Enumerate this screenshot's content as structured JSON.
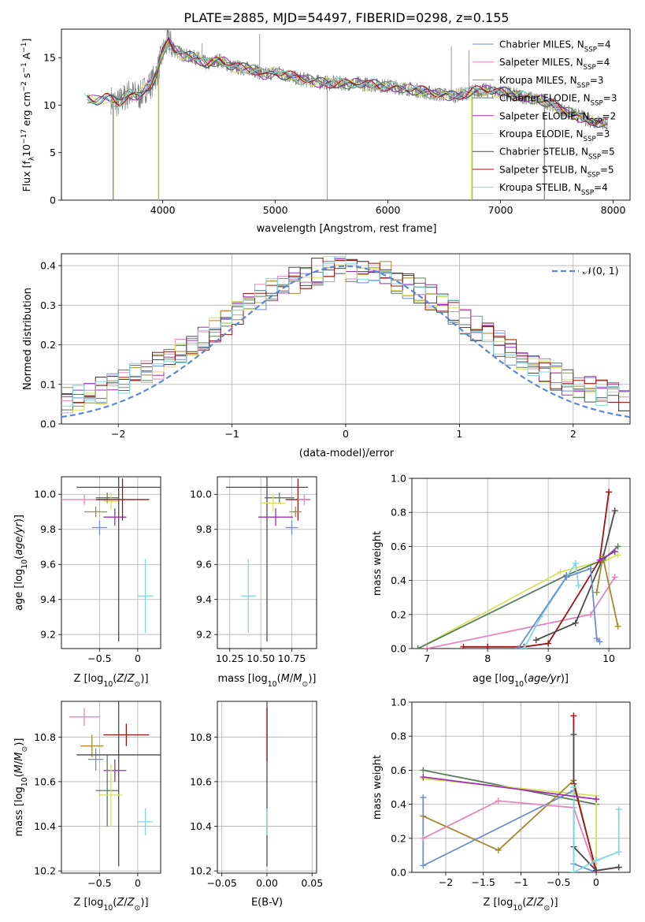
{
  "figure_title": "PLATE=2885, MJD=54497, FIBERID=0298, z=0.155",
  "colors": {
    "cha_miles": "#6a8fd4",
    "sal_miles": "#e587ba",
    "kro_miles": "#a08a2c",
    "cha_elodie": "#5b7a5a",
    "sal_elodie": "#9e2fb5",
    "kro_elodie": "#d5e35a",
    "cha_stelib": "#4a4a4a",
    "sal_stelib": "#9c1515",
    "kro_stelib": "#7fd9dd",
    "data": "#808080",
    "normal": "#5b87d6",
    "orange": "#e07b1f"
  },
  "chart_data": [
    {
      "id": "spectrum",
      "type": "line",
      "xlabel": "wavelength [Angstrom, rest frame]",
      "ylabel": "Flux [f_λ10^-17 erg cm^-2 s^-1 A^-1]",
      "xlim": [
        3100,
        8150
      ],
      "ylim": [
        0,
        18
      ],
      "xticks": [
        4000,
        5000,
        6000,
        7000,
        8000
      ],
      "yticks": [
        0,
        5,
        10,
        15
      ],
      "legend_position": "top-right",
      "series": [
        {
          "name": "Chabrier MILES, N_SSP=4",
          "key": "cha_miles"
        },
        {
          "name": "Salpeter MILES, N_SSP=4",
          "key": "sal_miles"
        },
        {
          "name": "Kroupa MILES, N_SSP=3",
          "key": "kro_miles"
        },
        {
          "name": "Chabrier ELODIE, N_SSP=3",
          "key": "cha_elodie"
        },
        {
          "name": "Salpeter ELODIE, N_SSP=2",
          "key": "sal_elodie"
        },
        {
          "name": "Kroupa ELODIE, N_SSP=3",
          "key": "kro_elodie"
        },
        {
          "name": "Chabrier STELIB, N_SSP=5",
          "key": "cha_stelib"
        },
        {
          "name": "Salpeter STELIB, N_SSP=5",
          "key": "sal_stelib"
        },
        {
          "name": "Kroupa STELIB, N_SSP=4",
          "key": "kro_stelib"
        }
      ],
      "model_curve": [
        [
          3300,
          11.0
        ],
        [
          3400,
          10.4
        ],
        [
          3500,
          10.8
        ],
        [
          3600,
          10.2
        ],
        [
          3700,
          11.2
        ],
        [
          3800,
          11.0
        ],
        [
          3850,
          11.8
        ],
        [
          3900,
          12.3
        ],
        [
          3950,
          13.5
        ],
        [
          4000,
          15.5
        ],
        [
          4050,
          16.8
        ],
        [
          4100,
          15.8
        ],
        [
          4200,
          15.2
        ],
        [
          4300,
          15.0
        ],
        [
          4400,
          14.3
        ],
        [
          4500,
          14.8
        ],
        [
          4600,
          14.1
        ],
        [
          4700,
          13.9
        ],
        [
          4800,
          13.8
        ],
        [
          4900,
          13.2
        ],
        [
          5000,
          13.5
        ],
        [
          5200,
          12.8
        ],
        [
          5400,
          12.4
        ],
        [
          5600,
          12.3
        ],
        [
          5800,
          12.2
        ],
        [
          6000,
          12.0
        ],
        [
          6200,
          11.7
        ],
        [
          6400,
          11.2
        ],
        [
          6600,
          11.0
        ],
        [
          6800,
          11.6
        ],
        [
          7000,
          11.4
        ],
        [
          7200,
          10.9
        ],
        [
          7400,
          10.4
        ],
        [
          7600,
          9.2
        ],
        [
          7800,
          8.4
        ],
        [
          7950,
          8.0
        ]
      ],
      "spectrum_range": [
        3540,
        7950
      ],
      "spike_lines": [
        [
          3560,
          0
        ],
        [
          3965,
          0
        ],
        [
          5460,
          0
        ],
        [
          6750,
          0
        ],
        [
          7390,
          0
        ],
        [
          4060,
          17.8
        ],
        [
          4861,
          17.5
        ],
        [
          6563,
          16.2
        ],
        [
          6720,
          15.8
        ],
        [
          4350,
          16.5
        ]
      ]
    },
    {
      "id": "residuals",
      "type": "line",
      "xlabel": "(data-model)/error",
      "ylabel": "Normed distribution",
      "xlim": [
        -2.5,
        2.5
      ],
      "ylim": [
        0,
        0.43
      ],
      "xticks": [
        -2,
        -1,
        0,
        1,
        2
      ],
      "yticks": [
        0.0,
        0.1,
        0.2,
        0.3,
        0.4
      ],
      "legend": "𝒩(0, 1)",
      "legend_position": "top-right",
      "bins": 50,
      "normal_pdf": {
        "mean": 0,
        "sigma": 1
      }
    },
    {
      "id": "age_vs_Z",
      "type": "scatter",
      "xlabel": "Z [log10(Z/Z⊙)]",
      "ylabel": "age  [log10(age/yr)]",
      "xlim": [
        -1.0,
        0.3
      ],
      "ylim": [
        9.12,
        10.1
      ],
      "xticks": [
        -0.5,
        0.0
      ],
      "yticks": [
        9.2,
        9.4,
        9.6,
        9.8,
        10.0
      ],
      "points": [
        {
          "key": "sal_miles",
          "x": -0.7,
          "y": 9.97,
          "xerr": 0.3,
          "yerr": 0.03
        },
        {
          "key": "kro_miles",
          "x": -0.55,
          "y": 9.9,
          "xerr": 0.15,
          "yerr": 0.03
        },
        {
          "key": "cha_miles",
          "x": -0.5,
          "y": 9.81,
          "xerr": 0.1,
          "yerr": 0.04
        },
        {
          "key": "cha_elodie",
          "x": -0.4,
          "y": 9.98,
          "xerr": 0.15,
          "yerr": 0.03
        },
        {
          "key": "kro_elodie",
          "x": -0.35,
          "y": 9.96,
          "xerr": 0.1,
          "yerr": 0.05
        },
        {
          "key": "sal_elodie",
          "x": -0.3,
          "y": 9.87,
          "xerr": 0.15,
          "yerr": 0.05
        },
        {
          "key": "cha_stelib",
          "x": -0.25,
          "y": 10.04,
          "xerr": 0.55,
          "yerr": 0.88
        },
        {
          "key": "sal_stelib",
          "x": -0.2,
          "y": 9.97,
          "xerr": 0.35,
          "yerr": 0.12
        },
        {
          "key": "kro_stelib",
          "x": 0.1,
          "y": 9.42,
          "xerr": 0.1,
          "yerr": 0.21
        }
      ]
    },
    {
      "id": "age_vs_mass",
      "type": "scatter",
      "xlabel": "mass [log10(M/M⊙)]",
      "xlim": [
        10.15,
        10.95
      ],
      "ylim": [
        9.12,
        10.1
      ],
      "xticks": [
        10.25,
        10.5,
        10.75
      ],
      "xticklabels": [
        "10.25",
        "10.50",
        "10.75"
      ],
      "yticks": [
        9.2,
        9.4,
        9.6,
        9.8,
        10.0
      ],
      "points": [
        {
          "key": "cha_stelib",
          "x": 10.55,
          "y": 10.04,
          "xerr": 0.33,
          "yerr": 0.88
        },
        {
          "key": "sal_stelib",
          "x": 10.8,
          "y": 9.97,
          "xerr": 0.1,
          "yerr": 0.12
        },
        {
          "key": "sal_miles",
          "x": 10.85,
          "y": 9.97,
          "xerr": 0.05,
          "yerr": 0.03
        },
        {
          "key": "cha_elodie",
          "x": 10.65,
          "y": 9.98,
          "xerr": 0.12,
          "yerr": 0.03
        },
        {
          "key": "kro_elodie",
          "x": 10.6,
          "y": 9.95,
          "xerr": 0.1,
          "yerr": 0.05
        },
        {
          "key": "kro_miles",
          "x": 10.78,
          "y": 9.9,
          "xerr": 0.05,
          "yerr": 0.03
        },
        {
          "key": "sal_elodie",
          "x": 10.62,
          "y": 9.87,
          "xerr": 0.14,
          "yerr": 0.05
        },
        {
          "key": "cha_miles",
          "x": 10.75,
          "y": 9.81,
          "xerr": 0.05,
          "yerr": 0.04
        },
        {
          "key": "kro_stelib",
          "x": 10.4,
          "y": 9.42,
          "xerr": 0.06,
          "yerr": 0.21
        }
      ]
    },
    {
      "id": "weight_vs_age",
      "type": "line",
      "xlabel": "age  [log10(age/yr)]",
      "ylabel": "mass weight",
      "xlim": [
        6.75,
        10.35
      ],
      "ylim": [
        0,
        1.0
      ],
      "xticks": [
        7,
        8,
        9,
        10
      ],
      "yticks": [
        0.0,
        0.2,
        0.4,
        0.6,
        0.8,
        1.0
      ],
      "series": [
        {
          "key": "kro_elodie",
          "points": [
            [
              6.85,
              0
            ],
            [
              9.2,
              0.45
            ],
            [
              9.95,
              0.52
            ],
            [
              10.15,
              0.55
            ]
          ]
        },
        {
          "key": "cha_elodie",
          "points": [
            [
              6.85,
              0
            ],
            [
              9.3,
              0.43
            ],
            [
              9.9,
              0.52
            ],
            [
              10.15,
              0.6
            ]
          ]
        },
        {
          "key": "sal_miles",
          "points": [
            [
              7.0,
              0
            ],
            [
              9.7,
              0.2
            ],
            [
              10.1,
              0.42
            ]
          ]
        },
        {
          "key": "sal_stelib",
          "points": [
            [
              7.6,
              0.01
            ],
            [
              8.0,
              0.01
            ],
            [
              8.6,
              0.01
            ],
            [
              9.0,
              0.03
            ],
            [
              9.85,
              0.52
            ],
            [
              10.0,
              0.92
            ]
          ]
        },
        {
          "key": "cha_stelib",
          "points": [
            [
              8.8,
              0.05
            ],
            [
              9.45,
              0.15
            ],
            [
              9.9,
              0.53
            ],
            [
              10.1,
              0.81
            ]
          ]
        },
        {
          "key": "kro_stelib",
          "points": [
            [
              8.6,
              0
            ],
            [
              8.9,
              0.2
            ],
            [
              9.45,
              0.5
            ],
            [
              9.5,
              0.37
            ]
          ]
        },
        {
          "key": "cha_miles",
          "points": [
            [
              8.5,
              0
            ],
            [
              9.3,
              0.42
            ],
            [
              9.7,
              0.47
            ],
            [
              9.8,
              0.06
            ],
            [
              9.85,
              0.04
            ]
          ]
        },
        {
          "key": "kro_miles",
          "points": [
            [
              9.8,
              0.33
            ],
            [
              9.9,
              0.54
            ],
            [
              10.15,
              0.13
            ]
          ]
        },
        {
          "key": "sal_elodie",
          "points": [
            [
              9.85,
              0.52
            ],
            [
              10.1,
              0.57
            ]
          ]
        }
      ]
    },
    {
      "id": "mass_vs_Z",
      "type": "scatter",
      "xlabel": "Z [log10(Z/Z⊙)]",
      "ylabel": "mass [log10(M/M⊙)]",
      "xlim": [
        -1.0,
        0.3
      ],
      "ylim": [
        10.19,
        10.96
      ],
      "xticks": [
        -0.5,
        0.0
      ],
      "yticks": [
        10.2,
        10.4,
        10.6,
        10.8
      ],
      "points": [
        {
          "key": "sal_miles",
          "x": -0.7,
          "y": 10.89,
          "xerr": 0.2,
          "yerr": 0.04
        },
        {
          "key": "kro_miles",
          "x": -0.6,
          "y": 10.76,
          "xerr": 0.15,
          "yerr": 0.05
        },
        {
          "key": "cha_miles",
          "x": -0.55,
          "y": 10.7,
          "xerr": 0.1,
          "yerr": 0.05
        },
        {
          "key": "cha_stelib",
          "x": -0.25,
          "y": 10.72,
          "xerr": 0.55,
          "yerr": 0.5
        },
        {
          "key": "sal_stelib",
          "x": -0.15,
          "y": 10.81,
          "xerr": 0.3,
          "yerr": 0.05
        },
        {
          "key": "sal_elodie",
          "x": -0.3,
          "y": 10.65,
          "xerr": 0.15,
          "yerr": 0.05
        },
        {
          "key": "cha_elodie",
          "x": -0.4,
          "y": 10.56,
          "xerr": 0.15,
          "yerr": 0.16
        },
        {
          "key": "kro_elodie",
          "x": -0.35,
          "y": 10.54,
          "xerr": 0.15,
          "yerr": 0.14
        },
        {
          "key": "kro_stelib",
          "x": 0.1,
          "y": 10.42,
          "xerr": 0.1,
          "yerr": 0.06
        }
      ]
    },
    {
      "id": "mass_vs_EBV",
      "type": "scatter",
      "xlabel": "E(B-V)",
      "xlim": [
        -0.055,
        0.055
      ],
      "ylim": [
        10.19,
        10.96
      ],
      "xticks": [
        -0.05,
        0.0,
        0.05
      ],
      "xticklabels": [
        "−0.05",
        "0.00",
        "0.05"
      ],
      "yticks": [
        10.2,
        10.4,
        10.6,
        10.8
      ],
      "points": [
        {
          "key": "cha_stelib",
          "x": 0,
          "y": 10.72,
          "xerr": 0,
          "yerr": 0.5
        },
        {
          "key": "sal_stelib",
          "x": 0,
          "y": 10.81,
          "xerr": 0,
          "yerr": 0.12
        },
        {
          "key": "kro_stelib",
          "x": 0,
          "y": 10.42,
          "xerr": 0,
          "yerr": 0.06
        }
      ]
    },
    {
      "id": "weight_vs_Z",
      "type": "line",
      "xlabel": "Z [log10(Z/Z⊙)]",
      "ylabel": "mass weight",
      "xlim": [
        -2.45,
        0.45
      ],
      "ylim": [
        0,
        1.0
      ],
      "xticks": [
        -2.0,
        -1.5,
        -1.0,
        -0.5,
        0.0
      ],
      "yticks": [
        0.0,
        0.2,
        0.4,
        0.6,
        0.8,
        1.0
      ],
      "series": [
        {
          "key": "cha_elodie",
          "points": [
            [
              -2.3,
              0.6
            ],
            [
              0.0,
              0.4
            ]
          ]
        },
        {
          "key": "kro_elodie",
          "points": [
            [
              -2.3,
              0.55
            ],
            [
              0.0,
              0.45
            ],
            [
              0.0,
              0.0
            ]
          ]
        },
        {
          "key": "cha_miles",
          "points": [
            [
              -2.3,
              0.44
            ],
            [
              -2.3,
              0.04
            ],
            [
              -0.3,
              0.48
            ],
            [
              -0.3,
              0.05
            ],
            [
              0.0,
              0.0
            ]
          ]
        },
        {
          "key": "kro_miles",
          "points": [
            [
              -2.3,
              0.33
            ],
            [
              -1.3,
              0.13
            ],
            [
              -0.3,
              0.54
            ],
            [
              0.0,
              0.0
            ]
          ]
        },
        {
          "key": "sal_miles",
          "points": [
            [
              -2.3,
              0.2
            ],
            [
              -1.3,
              0.42
            ],
            [
              -0.3,
              0.38
            ],
            [
              0.0,
              0.0
            ]
          ]
        },
        {
          "key": "sal_stelib",
          "points": [
            [
              -0.3,
              0.92
            ],
            [
              -0.3,
              0.52
            ],
            [
              0.0,
              0.01
            ],
            [
              0.3,
              0.03
            ]
          ]
        },
        {
          "key": "cha_stelib",
          "points": [
            [
              -0.3,
              0.81
            ],
            [
              -0.3,
              0.15
            ],
            [
              0.0,
              0.01
            ],
            [
              0.3,
              0.03
            ]
          ]
        },
        {
          "key": "kro_stelib",
          "points": [
            [
              -0.3,
              0.5
            ],
            [
              -0.3,
              0.0
            ],
            [
              0.0,
              0.07
            ],
            [
              0.3,
              0.12
            ],
            [
              0.3,
              0.37
            ]
          ]
        },
        {
          "key": "sal_elodie",
          "points": [
            [
              -2.3,
              0.56
            ],
            [
              0.0,
              0.43
            ]
          ]
        }
      ]
    }
  ]
}
